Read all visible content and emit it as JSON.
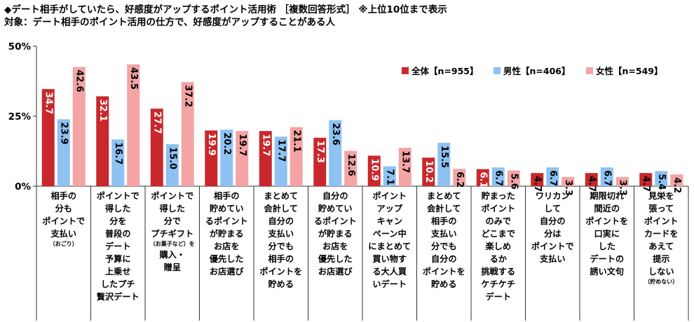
{
  "header": {
    "line1": "◆デート相手がしていたら、好感度がアップするポイント活用術 ［複数回答形式］ ※上位10位まで表示",
    "line2": "対象：デート相手のポイント活用の仕方で、好感度がアップすることがある人"
  },
  "colors": {
    "all": "#c8282c",
    "male": "#8ec2f2",
    "female": "#f4a4a4"
  },
  "chart_data": {
    "type": "bar",
    "ylim": [
      0,
      50
    ],
    "yticks": [
      "0%",
      "25%",
      "50%"
    ],
    "grid": false,
    "legend_position": "top-right",
    "series": [
      {
        "name": "全体【n=955】",
        "values": [
          34.7,
          32.1,
          27.7,
          19.9,
          19.7,
          17.3,
          10.9,
          10.2,
          6.1,
          4.7,
          4.7,
          4.7
        ]
      },
      {
        "name": "男性【n=406】",
        "values": [
          23.9,
          16.7,
          15.0,
          20.2,
          17.7,
          23.6,
          7.1,
          15.5,
          6.7,
          6.7,
          6.7,
          5.4
        ]
      },
      {
        "name": "女性【n=549】",
        "values": [
          42.6,
          43.5,
          37.2,
          19.7,
          21.1,
          12.6,
          13.7,
          6.2,
          5.6,
          3.3,
          3.3,
          4.2
        ]
      }
    ],
    "categories": [
      {
        "lines": [
          "相手の",
          "分も",
          "ポイントで",
          "支払い"
        ],
        "note": "（おごり）"
      },
      {
        "lines": [
          "ポイントで",
          "得した",
          "分を",
          "普段の",
          "デート",
          "予算に",
          "上乗せ",
          "したプチ",
          "贅沢デート"
        ],
        "note": ""
      },
      {
        "lines": [
          "ポイントで",
          "得した",
          "分で",
          "プチギフト"
        ],
        "note": "（お菓子など）を",
        "after": [
          "購入・",
          "贈呈"
        ]
      },
      {
        "lines": [
          "相手の",
          "貯めてい",
          "るポイント",
          "が貯まる",
          "お店を",
          "優先した",
          "お店選び"
        ],
        "note": ""
      },
      {
        "lines": [
          "まとめて",
          "会計して",
          "自分の",
          "支払い",
          "分でも",
          "相手の",
          "ポイントを",
          "貯める"
        ],
        "note": ""
      },
      {
        "lines": [
          "自分の",
          "貯めてい",
          "るポイント",
          "が貯まる",
          "お店を",
          "優先した",
          "お店選び"
        ],
        "note": ""
      },
      {
        "lines": [
          "ポイント",
          "アップ",
          "キャン",
          "ペーン中",
          "にまとめて",
          "買い物す",
          "る大人買",
          "いデート"
        ],
        "note": ""
      },
      {
        "lines": [
          "まとめて",
          "会計して",
          "相手の",
          "支払い",
          "分でも",
          "自分の",
          "ポイントを",
          "貯める"
        ],
        "note": ""
      },
      {
        "lines": [
          "貯まった",
          "ポイント",
          "のみで",
          "どこまで",
          "楽しめ",
          "るか",
          "挑戦する",
          "ケチケチ",
          "デート"
        ],
        "note": ""
      },
      {
        "lines": [
          "ワリカン",
          "して",
          "自分の",
          "分は",
          "ポイントで",
          "支払い"
        ],
        "note": ""
      },
      {
        "lines": [
          "期限切れ",
          "間近の",
          "ポイントを",
          "口実に",
          "した",
          "デートの",
          "誘い文句"
        ],
        "note": ""
      },
      {
        "lines": [
          "見栄を",
          "張って",
          "ポイント",
          "カードを",
          "あえて",
          "提示",
          "しない"
        ],
        "note": "（貯めない）"
      }
    ]
  }
}
